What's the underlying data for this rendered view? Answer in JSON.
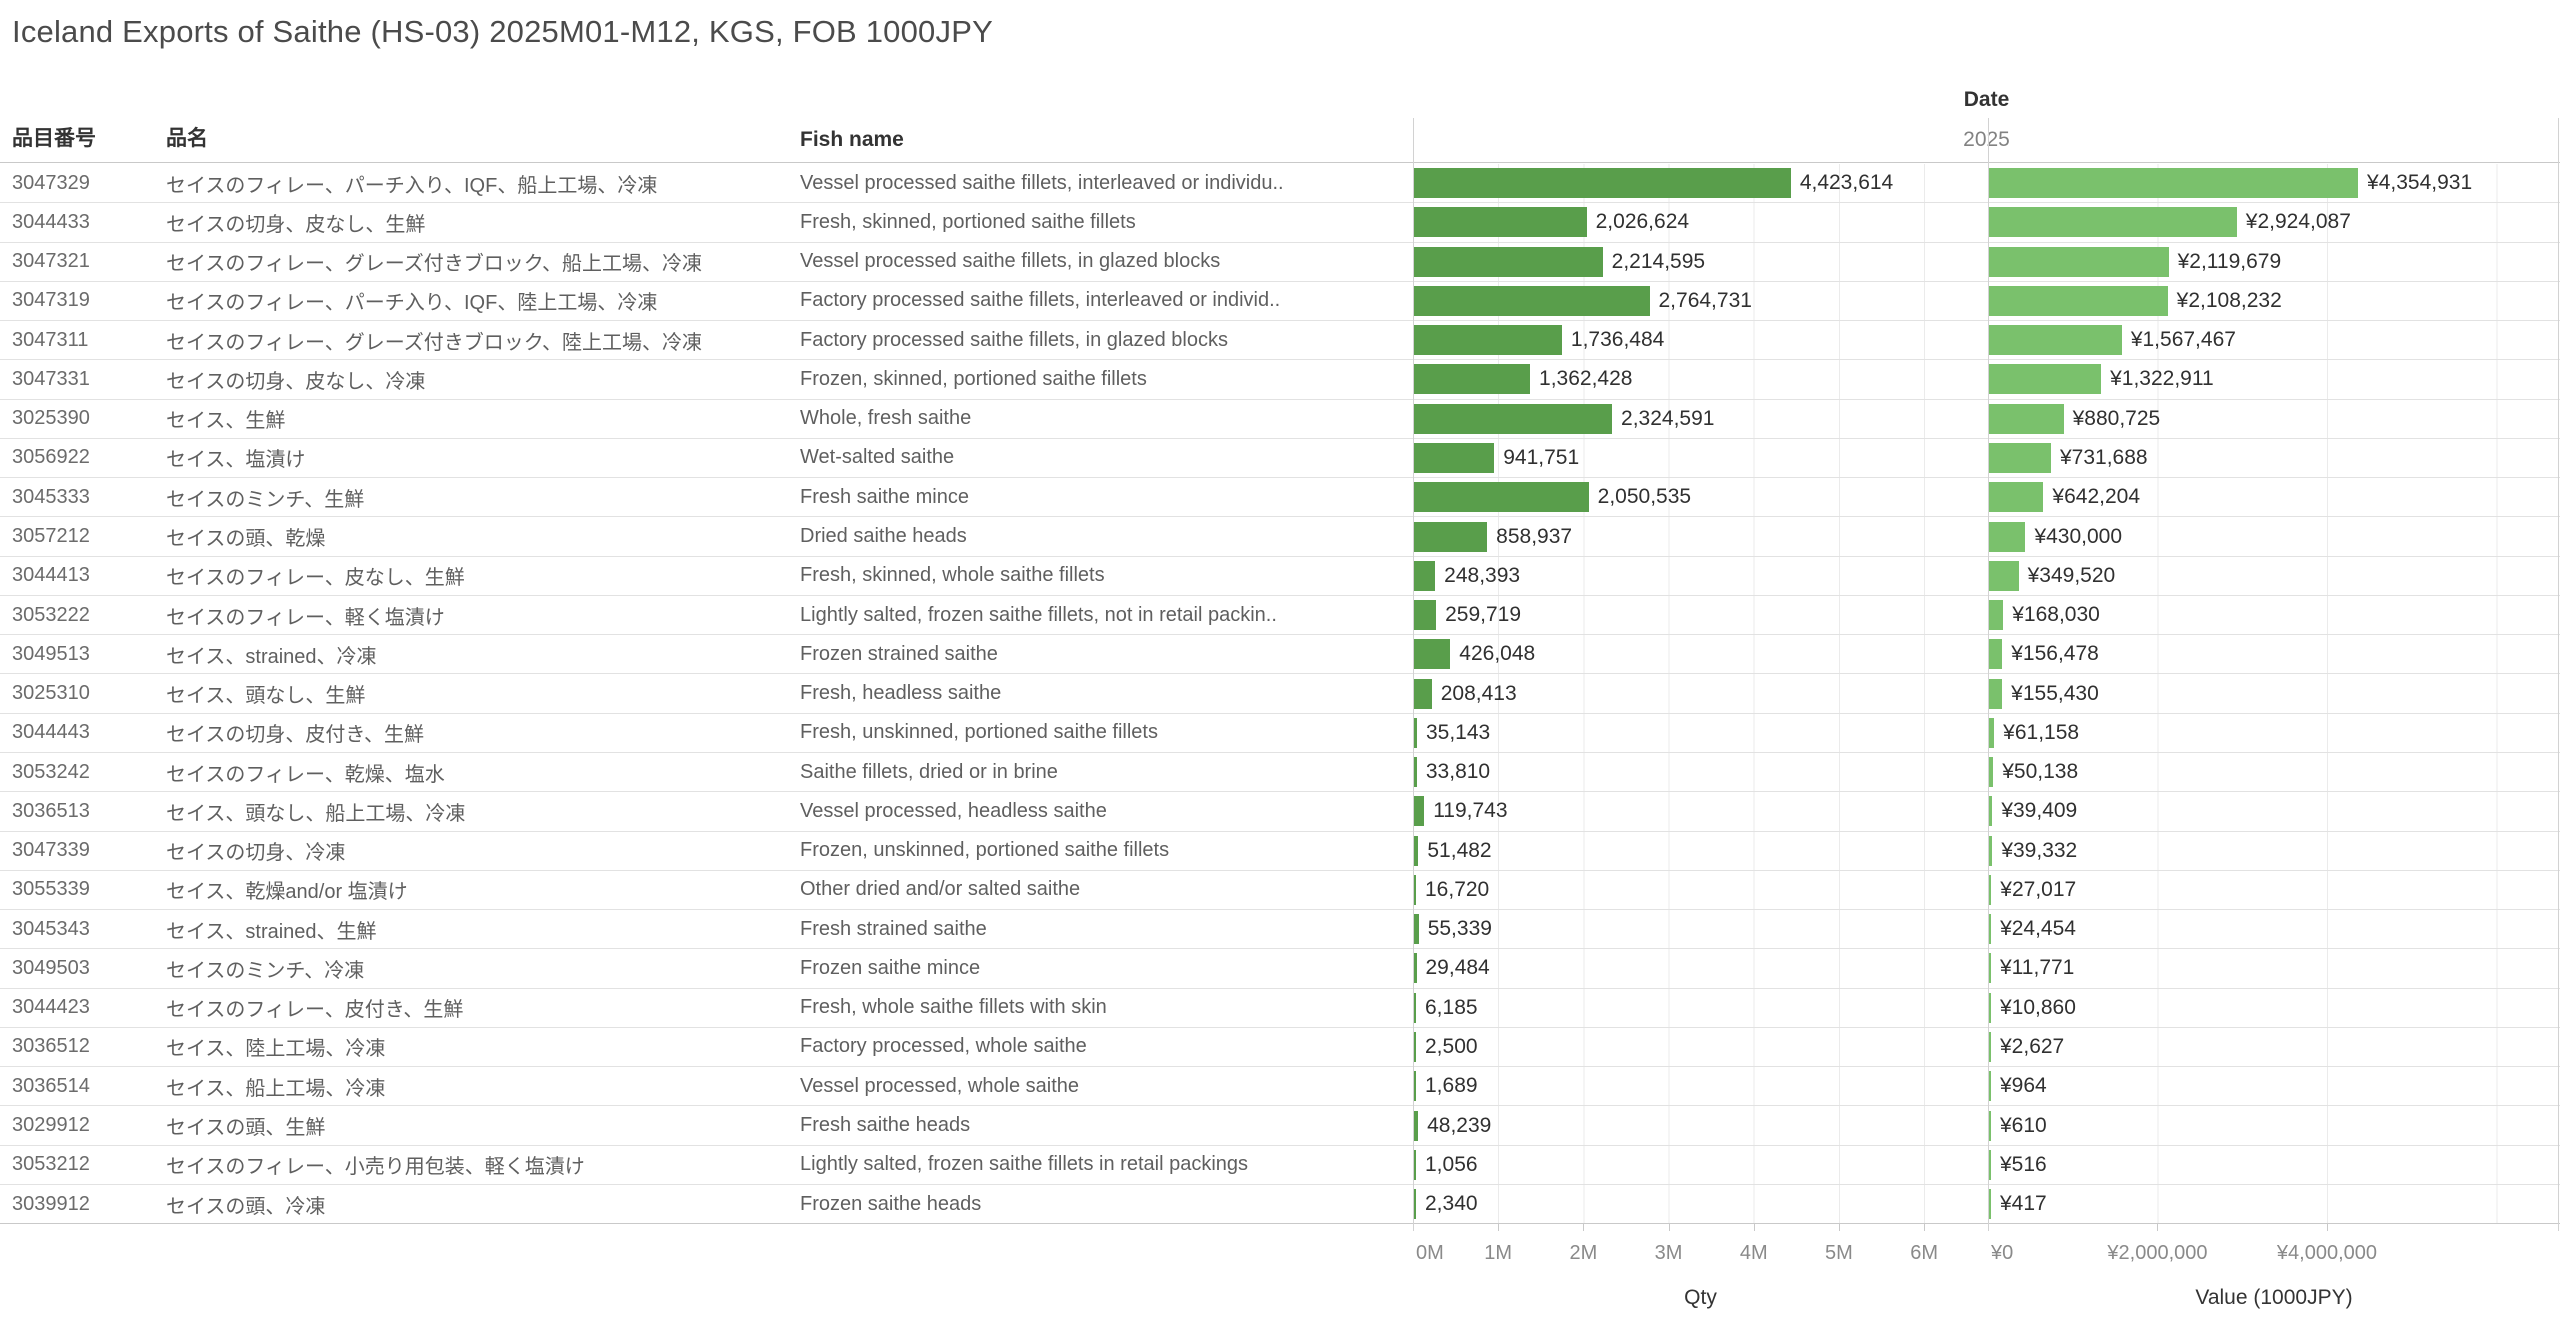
{
  "title": "Iceland Exports of Saithe (HS-03) 2025M01-M12, KGS, FOB 1000JPY",
  "columns": {
    "item_no": "品目番号",
    "item_name": "品名",
    "fish_name": "Fish name"
  },
  "date_header": {
    "label": "Date",
    "year": "2025"
  },
  "colors": {
    "qty_bar": "#599e4b",
    "value_bar": "#7ac16c"
  },
  "axes": {
    "qty": {
      "title": "Qty",
      "max": 6750000,
      "ticks": [
        {
          "label": "0M",
          "value": 0
        },
        {
          "label": "1M",
          "value": 1000000
        },
        {
          "label": "2M",
          "value": 2000000
        },
        {
          "label": "3M",
          "value": 3000000
        },
        {
          "label": "4M",
          "value": 4000000
        },
        {
          "label": "5M",
          "value": 5000000
        },
        {
          "label": "6M",
          "value": 6000000
        }
      ]
    },
    "value": {
      "title": "Value (1000JPY)",
      "max": 6750000,
      "ticks": [
        {
          "label": "¥0",
          "value": 0
        },
        {
          "label": "¥2,000,000",
          "value": 2000000
        },
        {
          "label": "¥4,000,000",
          "value": 4000000
        }
      ]
    }
  },
  "rows": [
    {
      "item_no": "3047329",
      "item_name": "セイスのフィレー、パーチ入り、IQF、船上工場、冷凍",
      "fish_name": "Vessel processed saithe fillets, interleaved or individu..",
      "qty": 4423614,
      "qty_label": "4,423,614",
      "value": 4354931,
      "value_label": "¥4,354,931"
    },
    {
      "item_no": "3044433",
      "item_name": "セイスの切身、皮なし、生鮮",
      "fish_name": "Fresh, skinned, portioned saithe fillets",
      "qty": 2026624,
      "qty_label": "2,026,624",
      "value": 2924087,
      "value_label": "¥2,924,087"
    },
    {
      "item_no": "3047321",
      "item_name": "セイスのフィレー、グレーズ付きブロック、船上工場、冷凍",
      "fish_name": "Vessel processed saithe fillets, in glazed blocks",
      "qty": 2214595,
      "qty_label": "2,214,595",
      "value": 2119679,
      "value_label": "¥2,119,679"
    },
    {
      "item_no": "3047319",
      "item_name": "セイスのフィレー、パーチ入り、IQF、陸上工場、冷凍",
      "fish_name": "Factory processed saithe fillets, interleaved or individ..",
      "qty": 2764731,
      "qty_label": "2,764,731",
      "value": 2108232,
      "value_label": "¥2,108,232"
    },
    {
      "item_no": "3047311",
      "item_name": "セイスのフィレー、グレーズ付きブロック、陸上工場、冷凍",
      "fish_name": "Factory processed saithe fillets, in glazed blocks",
      "qty": 1736484,
      "qty_label": "1,736,484",
      "value": 1567467,
      "value_label": "¥1,567,467"
    },
    {
      "item_no": "3047331",
      "item_name": "セイスの切身、皮なし、冷凍",
      "fish_name": "Frozen, skinned, portioned saithe fillets",
      "qty": 1362428,
      "qty_label": "1,362,428",
      "value": 1322911,
      "value_label": "¥1,322,911"
    },
    {
      "item_no": "3025390",
      "item_name": "セイス、生鮮",
      "fish_name": "Whole, fresh saithe",
      "qty": 2324591,
      "qty_label": "2,324,591",
      "value": 880725,
      "value_label": "¥880,725"
    },
    {
      "item_no": "3056922",
      "item_name": "セイス、塩漬け",
      "fish_name": "Wet-salted saithe",
      "qty": 941751,
      "qty_label": "941,751",
      "value": 731688,
      "value_label": "¥731,688"
    },
    {
      "item_no": "3045333",
      "item_name": "セイスのミンチ、生鮮",
      "fish_name": "Fresh saithe mince",
      "qty": 2050535,
      "qty_label": "2,050,535",
      "value": 642204,
      "value_label": "¥642,204"
    },
    {
      "item_no": "3057212",
      "item_name": "セイスの頭、乾燥",
      "fish_name": "Dried saithe heads",
      "qty": 858937,
      "qty_label": "858,937",
      "value": 430000,
      "value_label": "¥430,000"
    },
    {
      "item_no": "3044413",
      "item_name": "セイスのフィレー、皮なし、生鮮",
      "fish_name": "Fresh, skinned, whole saithe fillets",
      "qty": 248393,
      "qty_label": "248,393",
      "value": 349520,
      "value_label": "¥349,520"
    },
    {
      "item_no": "3053222",
      "item_name": "セイスのフィレー、軽く塩漬け",
      "fish_name": "Lightly salted, frozen saithe fillets, not in retail packin..",
      "qty": 259719,
      "qty_label": "259,719",
      "value": 168030,
      "value_label": "¥168,030"
    },
    {
      "item_no": "3049513",
      "item_name": "セイス、strained、冷凍",
      "fish_name": "Frozen strained saithe",
      "qty": 426048,
      "qty_label": "426,048",
      "value": 156478,
      "value_label": "¥156,478"
    },
    {
      "item_no": "3025310",
      "item_name": "セイス、頭なし、生鮮",
      "fish_name": "Fresh, headless saithe",
      "qty": 208413,
      "qty_label": "208,413",
      "value": 155430,
      "value_label": "¥155,430"
    },
    {
      "item_no": "3044443",
      "item_name": "セイスの切身、皮付き、生鮮",
      "fish_name": "Fresh, unskinned, portioned saithe fillets",
      "qty": 35143,
      "qty_label": "35,143",
      "value": 61158,
      "value_label": "¥61,158"
    },
    {
      "item_no": "3053242",
      "item_name": "セイスのフィレー、乾燥、塩水",
      "fish_name": "Saithe fillets, dried or in brine",
      "qty": 33810,
      "qty_label": "33,810",
      "value": 50138,
      "value_label": "¥50,138"
    },
    {
      "item_no": "3036513",
      "item_name": "セイス、頭なし、船上工場、冷凍",
      "fish_name": "Vessel processed, headless saithe",
      "qty": 119743,
      "qty_label": "119,743",
      "value": 39409,
      "value_label": "¥39,409"
    },
    {
      "item_no": "3047339",
      "item_name": "セイスの切身、冷凍",
      "fish_name": "Frozen, unskinned, portioned saithe fillets",
      "qty": 51482,
      "qty_label": "51,482",
      "value": 39332,
      "value_label": "¥39,332"
    },
    {
      "item_no": "3055339",
      "item_name": "セイス、乾燥and/or 塩漬け",
      "fish_name": "Other dried and/or salted saithe",
      "qty": 16720,
      "qty_label": "16,720",
      "value": 27017,
      "value_label": "¥27,017"
    },
    {
      "item_no": "3045343",
      "item_name": "セイス、strained、生鮮",
      "fish_name": "Fresh strained saithe",
      "qty": 55339,
      "qty_label": "55,339",
      "value": 24454,
      "value_label": "¥24,454"
    },
    {
      "item_no": "3049503",
      "item_name": "セイスのミンチ、冷凍",
      "fish_name": "Frozen saithe mince",
      "qty": 29484,
      "qty_label": "29,484",
      "value": 11771,
      "value_label": "¥11,771"
    },
    {
      "item_no": "3044423",
      "item_name": "セイスのフィレー、皮付き、生鮮",
      "fish_name": "Fresh, whole saithe fillets with skin",
      "qty": 6185,
      "qty_label": "6,185",
      "value": 10860,
      "value_label": "¥10,860"
    },
    {
      "item_no": "3036512",
      "item_name": "セイス、陸上工場、冷凍",
      "fish_name": "Factory processed, whole saithe",
      "qty": 2500,
      "qty_label": "2,500",
      "value": 2627,
      "value_label": "¥2,627"
    },
    {
      "item_no": "3036514",
      "item_name": "セイス、船上工場、冷凍",
      "fish_name": "Vessel processed, whole saithe",
      "qty": 1689,
      "qty_label": "1,689",
      "value": 964,
      "value_label": "¥964"
    },
    {
      "item_no": "3029912",
      "item_name": "セイスの頭、生鮮",
      "fish_name": "Fresh saithe heads",
      "qty": 48239,
      "qty_label": "48,239",
      "value": 610,
      "value_label": "¥610"
    },
    {
      "item_no": "3053212",
      "item_name": "セイスのフィレー、小売り用包装、軽く塩漬け",
      "fish_name": "Lightly salted, frozen saithe fillets in retail packings",
      "qty": 1056,
      "qty_label": "1,056",
      "value": 516,
      "value_label": "¥516"
    },
    {
      "item_no": "3039912",
      "item_name": "セイスの頭、冷凍",
      "fish_name": "Frozen saithe heads",
      "qty": 2340,
      "qty_label": "2,340",
      "value": 417,
      "value_label": "¥417"
    }
  ],
  "chart_data": {
    "type": "bar",
    "orientation": "horizontal",
    "title": "Iceland Exports of Saithe (HS-03) 2025M01-M12, KGS, FOB 1000JPY",
    "column_header": "Date",
    "column_value": "2025",
    "grid": true,
    "categories": [
      "Vessel processed saithe fillets, interleaved or individu..",
      "Fresh, skinned, portioned saithe fillets",
      "Vessel processed saithe fillets, in glazed blocks",
      "Factory processed saithe fillets, interleaved or individ..",
      "Factory processed saithe fillets, in glazed blocks",
      "Frozen, skinned, portioned saithe fillets",
      "Whole, fresh saithe",
      "Wet-salted saithe",
      "Fresh saithe mince",
      "Dried saithe heads",
      "Fresh, skinned, whole saithe fillets",
      "Lightly salted, frozen saithe fillets, not in retail packin..",
      "Frozen strained saithe",
      "Fresh, headless saithe",
      "Fresh, unskinned, portioned saithe fillets",
      "Saithe fillets, dried or in brine",
      "Vessel processed, headless saithe",
      "Frozen, unskinned, portioned saithe fillets",
      "Other dried and/or salted saithe",
      "Fresh strained saithe",
      "Frozen saithe mince",
      "Fresh, whole saithe fillets with skin",
      "Factory processed, whole saithe",
      "Vessel processed, whole saithe",
      "Fresh saithe heads",
      "Lightly salted, frozen saithe fillets in retail packings",
      "Frozen saithe heads"
    ],
    "series": [
      {
        "name": "Qty",
        "xlabel": "Qty",
        "xlim": [
          0,
          6750000
        ],
        "tick_labels": [
          "0M",
          "1M",
          "2M",
          "3M",
          "4M",
          "5M",
          "6M"
        ],
        "color": "#599e4b",
        "values": [
          4423614,
          2026624,
          2214595,
          2764731,
          1736484,
          1362428,
          2324591,
          941751,
          2050535,
          858937,
          248393,
          259719,
          426048,
          208413,
          35143,
          33810,
          119743,
          51482,
          16720,
          55339,
          29484,
          6185,
          2500,
          1689,
          48239,
          1056,
          2340
        ]
      },
      {
        "name": "Value (1000JPY)",
        "xlabel": "Value (1000JPY)",
        "xlim": [
          0,
          6750000
        ],
        "tick_labels": [
          "¥0",
          "¥2,000,000",
          "¥4,000,000"
        ],
        "color": "#7ac16c",
        "values": [
          4354931,
          2924087,
          2119679,
          2108232,
          1567467,
          1322911,
          880725,
          731688,
          642204,
          430000,
          349520,
          168030,
          156478,
          155430,
          61158,
          50138,
          39409,
          39332,
          27017,
          24454,
          11771,
          10860,
          2627,
          964,
          610,
          516,
          417
        ]
      }
    ]
  }
}
